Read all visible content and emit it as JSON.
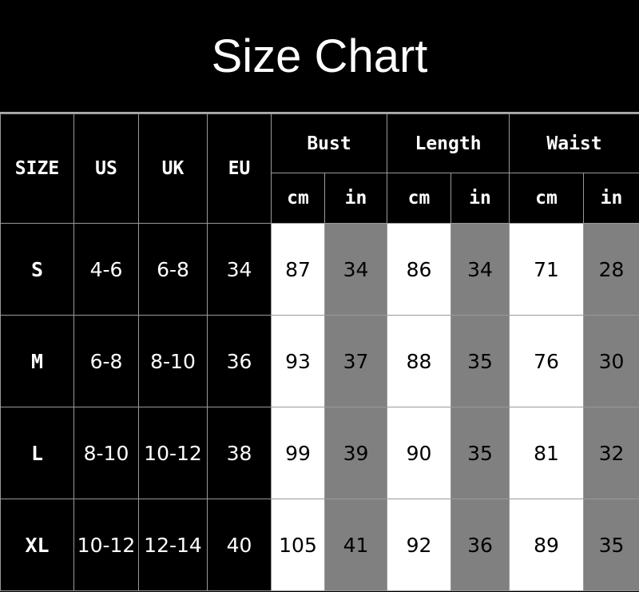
{
  "title": "Size Chart",
  "headers": {
    "size": "SIZE",
    "us": "US",
    "uk": "UK",
    "eu": "EU",
    "bust": "Bust",
    "length": "Length",
    "waist": "Waist",
    "cm": "cm",
    "in": "in"
  },
  "colors": {
    "background": "#000000",
    "cm_cell": "#ffffff",
    "in_cell": "#808080",
    "grid": "#999999"
  },
  "rows": [
    {
      "size": "S",
      "us": "4-6",
      "uk": "6-8",
      "eu": "34",
      "bust_cm": "87",
      "bust_in": "34",
      "length_cm": "86",
      "length_in": "34",
      "waist_cm": "71",
      "waist_in": "28"
    },
    {
      "size": "M",
      "us": "6-8",
      "uk": "8-10",
      "eu": "36",
      "bust_cm": "93",
      "bust_in": "37",
      "length_cm": "88",
      "length_in": "35",
      "waist_cm": "76",
      "waist_in": "30"
    },
    {
      "size": "L",
      "us": "8-10",
      "uk": "10-12",
      "eu": "38",
      "bust_cm": "99",
      "bust_in": "39",
      "length_cm": "90",
      "length_in": "35",
      "waist_cm": "81",
      "waist_in": "32"
    },
    {
      "size": "XL",
      "us": "10-12",
      "uk": "12-14",
      "eu": "40",
      "bust_cm": "105",
      "bust_in": "41",
      "length_cm": "92",
      "length_in": "36",
      "waist_cm": "89",
      "waist_in": "35"
    }
  ]
}
